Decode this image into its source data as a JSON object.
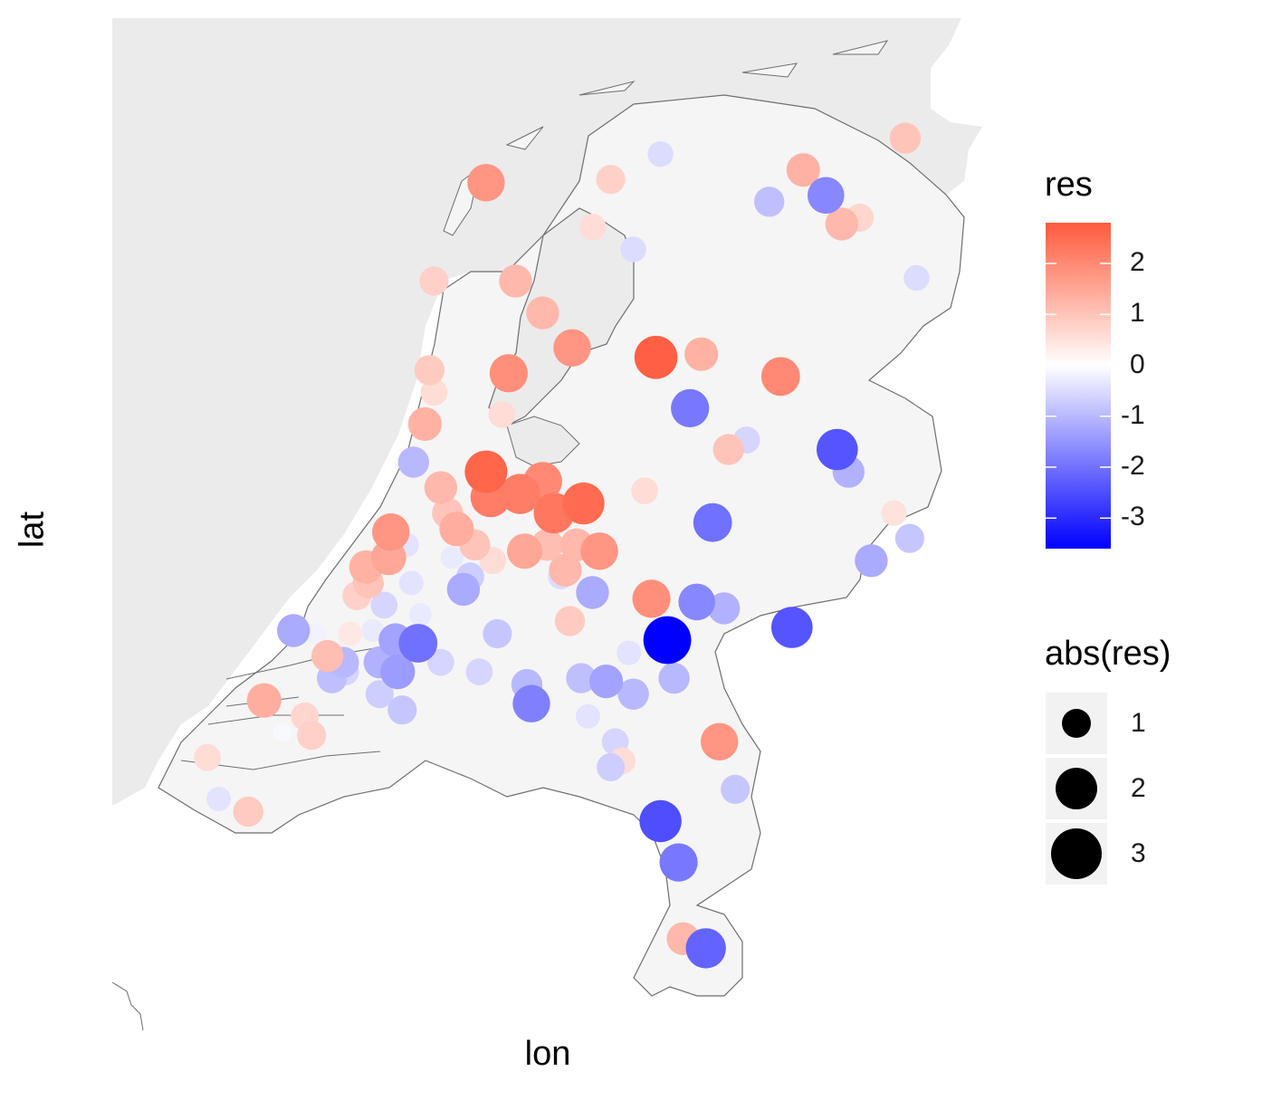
{
  "chart_data": {
    "type": "scatter",
    "xlabel": "lon",
    "ylabel": "lat",
    "color_legend": {
      "title": "res",
      "ticks": [
        2,
        1,
        0,
        -1,
        -2,
        -3
      ],
      "range": [
        -3.6,
        2.8
      ],
      "low_color": "#0000ff",
      "mid_color": "#ffffff",
      "high_color": "#ff5a3c"
    },
    "size_legend": {
      "title": "abs(res)",
      "entries": [
        1,
        2,
        3
      ]
    },
    "points": [
      {
        "x": 3.72,
        "y": 51.45,
        "res": 0.6
      },
      {
        "x": 3.77,
        "y": 51.32,
        "res": -0.4
      },
      {
        "x": 3.9,
        "y": 51.28,
        "res": 0.9
      },
      {
        "x": 3.97,
        "y": 51.63,
        "res": 1.4
      },
      {
        "x": 4.05,
        "y": 51.53,
        "res": -0.1
      },
      {
        "x": 4.15,
        "y": 51.58,
        "res": 0.7
      },
      {
        "x": 4.18,
        "y": 51.52,
        "res": 0.8
      },
      {
        "x": 4.1,
        "y": 51.85,
        "res": -1.2
      },
      {
        "x": 4.2,
        "y": 51.84,
        "res": -0.2
      },
      {
        "x": 4.25,
        "y": 51.77,
        "res": 1.1
      },
      {
        "x": 4.27,
        "y": 51.7,
        "res": -0.9
      },
      {
        "x": 4.32,
        "y": 51.75,
        "res": -1.0
      },
      {
        "x": 4.33,
        "y": 51.72,
        "res": -0.6
      },
      {
        "x": 4.35,
        "y": 51.84,
        "res": 0.4
      },
      {
        "x": 4.38,
        "y": 51.96,
        "res": 0.8
      },
      {
        "x": 4.42,
        "y": 52.05,
        "res": 1.3
      },
      {
        "x": 4.43,
        "y": 52.0,
        "res": 1.0
      },
      {
        "x": 4.45,
        "y": 51.85,
        "res": -0.3
      },
      {
        "x": 4.48,
        "y": 51.75,
        "res": -1.1
      },
      {
        "x": 4.48,
        "y": 51.65,
        "res": -0.7
      },
      {
        "x": 4.5,
        "y": 51.93,
        "res": -0.6
      },
      {
        "x": 4.52,
        "y": 52.08,
        "res": 1.5
      },
      {
        "x": 4.53,
        "y": 52.16,
        "res": 1.8
      },
      {
        "x": 4.55,
        "y": 51.82,
        "res": -1.3
      },
      {
        "x": 4.56,
        "y": 51.72,
        "res": -1.4
      },
      {
        "x": 4.58,
        "y": 51.6,
        "res": -0.8
      },
      {
        "x": 4.6,
        "y": 52.12,
        "res": -0.4
      },
      {
        "x": 4.62,
        "y": 52.0,
        "res": -0.4
      },
      {
        "x": 4.63,
        "y": 52.38,
        "res": -1.0
      },
      {
        "x": 4.65,
        "y": 51.81,
        "res": -2.0
      },
      {
        "x": 4.66,
        "y": 51.9,
        "res": -0.3
      },
      {
        "x": 4.68,
        "y": 52.5,
        "res": 1.3
      },
      {
        "x": 4.7,
        "y": 52.67,
        "res": 0.9
      },
      {
        "x": 4.72,
        "y": 52.6,
        "res": 0.6
      },
      {
        "x": 4.75,
        "y": 51.75,
        "res": -0.6
      },
      {
        "x": 4.75,
        "y": 52.3,
        "res": 1.2
      },
      {
        "x": 4.78,
        "y": 52.22,
        "res": 1.0
      },
      {
        "x": 4.8,
        "y": 52.08,
        "res": -0.3
      },
      {
        "x": 4.82,
        "y": 52.17,
        "res": 1.4
      },
      {
        "x": 4.85,
        "y": 51.98,
        "res": -1.2
      },
      {
        "x": 4.88,
        "y": 52.02,
        "res": -0.7
      },
      {
        "x": 4.9,
        "y": 52.12,
        "res": 1.0
      },
      {
        "x": 4.92,
        "y": 51.72,
        "res": -0.6
      },
      {
        "x": 4.95,
        "y": 52.35,
        "res": 2.6
      },
      {
        "x": 4.97,
        "y": 52.27,
        "res": 2.2
      },
      {
        "x": 4.98,
        "y": 52.07,
        "res": 0.6
      },
      {
        "x": 5.0,
        "y": 51.84,
        "res": -0.8
      },
      {
        "x": 5.02,
        "y": 52.53,
        "res": 0.6
      },
      {
        "x": 5.05,
        "y": 52.66,
        "res": 1.9
      },
      {
        "x": 5.08,
        "y": 52.95,
        "res": 1.2
      },
      {
        "x": 5.1,
        "y": 52.28,
        "res": 2.2
      },
      {
        "x": 5.12,
        "y": 52.1,
        "res": 1.5
      },
      {
        "x": 5.13,
        "y": 51.68,
        "res": -1.0
      },
      {
        "x": 5.15,
        "y": 51.62,
        "res": -1.8
      },
      {
        "x": 5.2,
        "y": 52.32,
        "res": 2.0
      },
      {
        "x": 5.22,
        "y": 52.12,
        "res": 1.1
      },
      {
        "x": 5.25,
        "y": 52.22,
        "res": 2.3
      },
      {
        "x": 5.28,
        "y": 52.02,
        "res": -0.5
      },
      {
        "x": 5.3,
        "y": 52.04,
        "res": 1.2
      },
      {
        "x": 5.32,
        "y": 51.88,
        "res": 0.9
      },
      {
        "x": 5.33,
        "y": 52.74,
        "res": 1.8
      },
      {
        "x": 5.35,
        "y": 52.12,
        "res": 1.2
      },
      {
        "x": 5.37,
        "y": 51.7,
        "res": -0.9
      },
      {
        "x": 5.38,
        "y": 52.25,
        "res": 2.5
      },
      {
        "x": 5.4,
        "y": 51.58,
        "res": -0.4
      },
      {
        "x": 5.42,
        "y": 51.97,
        "res": -1.2
      },
      {
        "x": 5.45,
        "y": 52.1,
        "res": 1.8
      },
      {
        "x": 5.48,
        "y": 51.69,
        "res": -1.3
      },
      {
        "x": 5.5,
        "y": 51.42,
        "res": -0.7
      },
      {
        "x": 5.52,
        "y": 51.5,
        "res": -0.6
      },
      {
        "x": 5.55,
        "y": 51.44,
        "res": 0.6
      },
      {
        "x": 5.58,
        "y": 51.78,
        "res": -0.4
      },
      {
        "x": 5.6,
        "y": 51.65,
        "res": -1.0
      },
      {
        "x": 5.65,
        "y": 52.29,
        "res": 0.6
      },
      {
        "x": 5.68,
        "y": 51.95,
        "res": 1.9
      },
      {
        "x": 5.7,
        "y": 52.71,
        "res": 2.7
      },
      {
        "x": 5.72,
        "y": 51.25,
        "res": -2.5
      },
      {
        "x": 5.75,
        "y": 51.82,
        "res": -3.6
      },
      {
        "x": 5.78,
        "y": 51.7,
        "res": -1.0
      },
      {
        "x": 5.8,
        "y": 51.12,
        "res": -1.9
      },
      {
        "x": 5.82,
        "y": 50.88,
        "res": 1.2
      },
      {
        "x": 5.85,
        "y": 52.55,
        "res": -1.9
      },
      {
        "x": 5.88,
        "y": 51.94,
        "res": -1.7
      },
      {
        "x": 5.9,
        "y": 52.72,
        "res": 1.3
      },
      {
        "x": 5.92,
        "y": 50.85,
        "res": -2.2
      },
      {
        "x": 5.95,
        "y": 52.19,
        "res": -2.0
      },
      {
        "x": 5.98,
        "y": 51.5,
        "res": 1.8
      },
      {
        "x": 6.0,
        "y": 51.92,
        "res": -1.1
      },
      {
        "x": 6.02,
        "y": 52.42,
        "res": 1.0
      },
      {
        "x": 6.05,
        "y": 51.35,
        "res": -0.8
      },
      {
        "x": 6.1,
        "y": 52.45,
        "res": -0.6
      },
      {
        "x": 6.2,
        "y": 53.2,
        "res": -0.9
      },
      {
        "x": 6.25,
        "y": 52.65,
        "res": 2.0
      },
      {
        "x": 6.3,
        "y": 51.86,
        "res": -2.4
      },
      {
        "x": 6.35,
        "y": 53.3,
        "res": 1.3
      },
      {
        "x": 6.45,
        "y": 53.22,
        "res": -1.7
      },
      {
        "x": 6.5,
        "y": 52.42,
        "res": -2.4
      },
      {
        "x": 6.52,
        "y": 53.13,
        "res": 1.2
      },
      {
        "x": 6.55,
        "y": 52.35,
        "res": -1.1
      },
      {
        "x": 6.6,
        "y": 53.15,
        "res": 0.7
      },
      {
        "x": 6.65,
        "y": 52.07,
        "res": -1.2
      },
      {
        "x": 6.75,
        "y": 52.22,
        "res": 0.5
      },
      {
        "x": 6.8,
        "y": 53.4,
        "res": 1.0
      },
      {
        "x": 6.82,
        "y": 52.14,
        "res": -0.8
      },
      {
        "x": 6.85,
        "y": 52.96,
        "res": -0.5
      },
      {
        "x": 4.95,
        "y": 53.26,
        "res": 1.8
      },
      {
        "x": 5.5,
        "y": 53.27,
        "res": 0.8
      },
      {
        "x": 5.72,
        "y": 53.35,
        "res": -0.5
      },
      {
        "x": 5.6,
        "y": 53.05,
        "res": -0.5
      },
      {
        "x": 5.42,
        "y": 53.12,
        "res": 0.6
      },
      {
        "x": 5.2,
        "y": 52.85,
        "res": 1.2
      },
      {
        "x": 4.72,
        "y": 52.95,
        "res": 0.8
      }
    ]
  }
}
